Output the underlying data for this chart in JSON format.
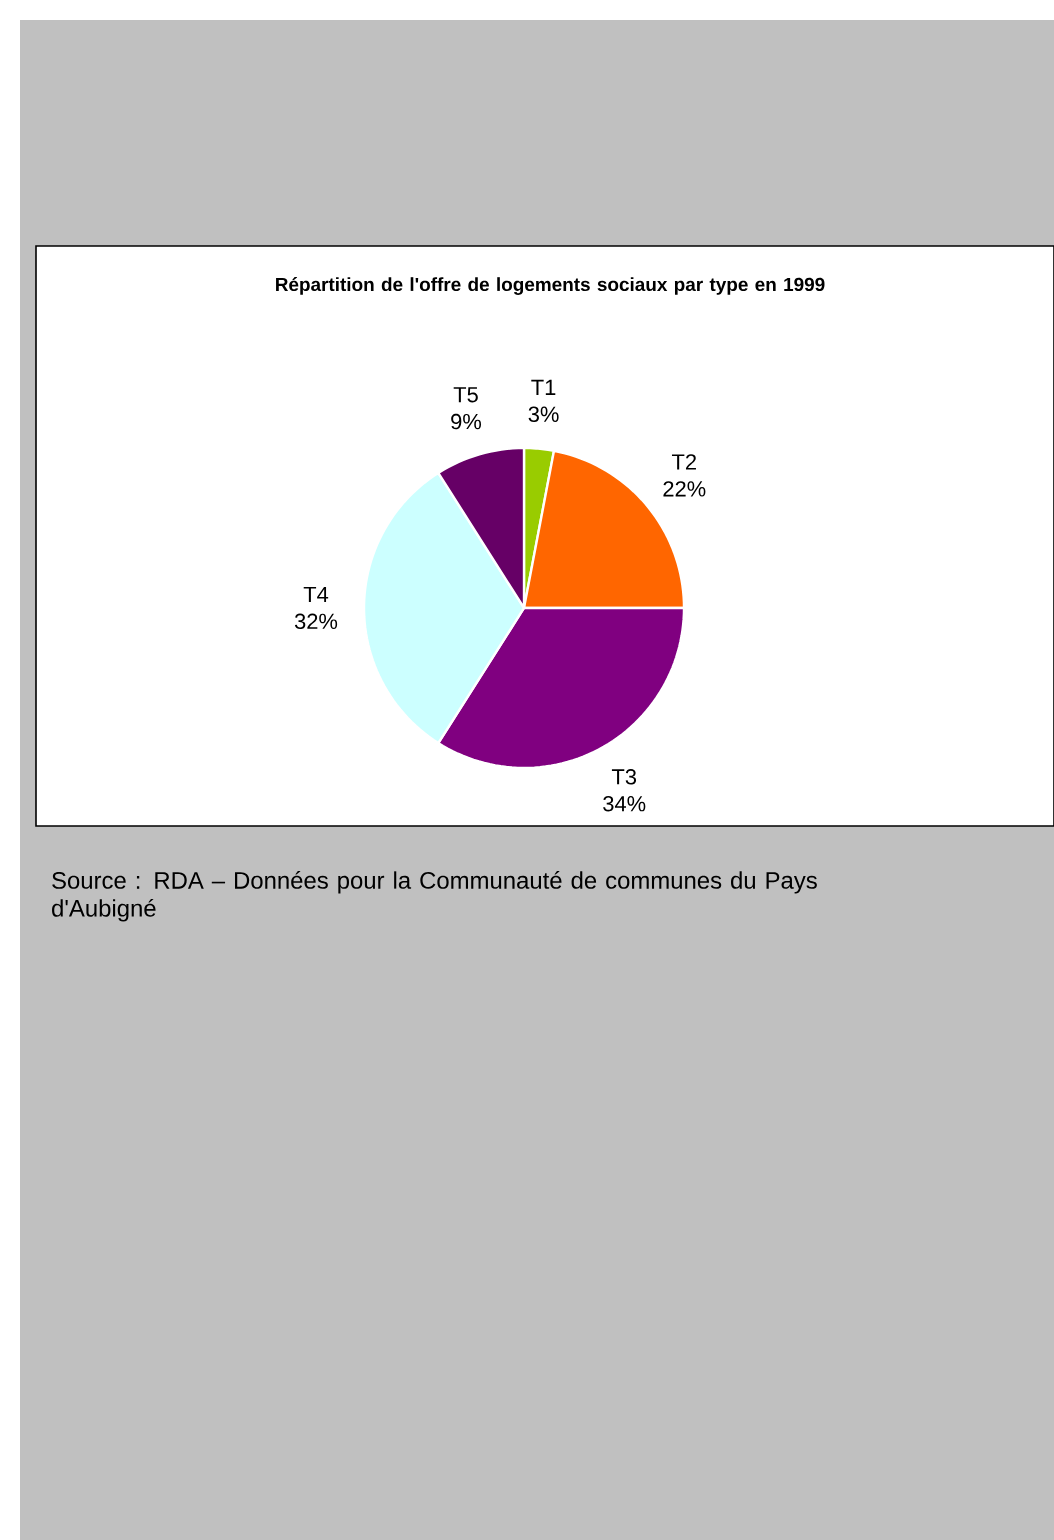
{
  "chart_data": {
    "type": "pie",
    "title": "Répartition de l'offre de logements sociaux par type en 1999",
    "categories": [
      "T1",
      "T2",
      "T3",
      "T4",
      "T5"
    ],
    "values": [
      3,
      22,
      34,
      32,
      9
    ],
    "value_labels": [
      "3%",
      "22%",
      "34%",
      "32%",
      "9%"
    ],
    "colors": [
      "#99cc00",
      "#ff6600",
      "#800080",
      "#ccffff",
      "#660066"
    ],
    "annotations": [
      "Source : RDA – Données pour la Communauté de communes du Pays d'Aubigné"
    ]
  }
}
